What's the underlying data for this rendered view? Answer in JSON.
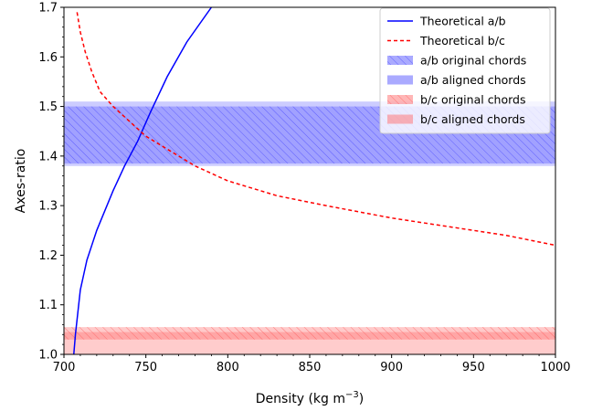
{
  "chart_data": {
    "type": "line",
    "xlabel": "Density (kg m",
    "xlabel_sup": "−3",
    "xlabel_close": ")",
    "ylabel": "Axes-ratio",
    "xlim": [
      700,
      1000
    ],
    "ylim": [
      1.0,
      1.7
    ],
    "xticks": [
      700,
      750,
      800,
      850,
      900,
      950,
      1000
    ],
    "yticks": [
      1.0,
      1.1,
      1.2,
      1.3,
      1.4,
      1.5,
      1.6,
      1.7
    ],
    "xtick_labels": [
      "700",
      "750",
      "800",
      "850",
      "900",
      "950",
      "1000"
    ],
    "ytick_labels": [
      "1.0",
      "1.1",
      "1.2",
      "1.3",
      "1.4",
      "1.5",
      "1.6",
      "1.7"
    ],
    "grid": false,
    "legend_position": "top-right",
    "series": [
      {
        "name": "Theoretical a/b",
        "style": "solid",
        "color": "#0000ff",
        "x": [
          706,
          706.5,
          707,
          708,
          709,
          710,
          712,
          714,
          717,
          720,
          725,
          730,
          737,
          745,
          753,
          763,
          775,
          790
        ],
        "y": [
          1.0,
          1.02,
          1.04,
          1.07,
          1.1,
          1.13,
          1.16,
          1.19,
          1.22,
          1.25,
          1.29,
          1.33,
          1.38,
          1.43,
          1.49,
          1.56,
          1.63,
          1.7
        ]
      },
      {
        "name": "Theoretical b/c",
        "style": "dashed",
        "color": "#ff0000",
        "x": [
          708,
          710,
          713,
          717,
          722,
          730,
          740,
          750,
          765,
          780,
          800,
          830,
          860,
          900,
          940,
          970,
          1000
        ],
        "y": [
          1.69,
          1.65,
          1.61,
          1.57,
          1.53,
          1.5,
          1.47,
          1.44,
          1.41,
          1.38,
          1.35,
          1.32,
          1.3,
          1.275,
          1.255,
          1.24,
          1.22
        ]
      }
    ],
    "bands": [
      {
        "name": "a/b original chords",
        "ymin": 1.385,
        "ymax": 1.5,
        "color": "#0000ff",
        "hatch": true
      },
      {
        "name": "a/b aligned chords",
        "ymin": 1.38,
        "ymax": 1.51,
        "color": "#0000ff",
        "hatch": false
      },
      {
        "name": "b/c original chords",
        "ymin": 1.03,
        "ymax": 1.055,
        "color": "#ff0000",
        "hatch": true
      },
      {
        "name": "b/c aligned chords",
        "ymin": 1.0,
        "ymax": 1.045,
        "color": "#ff0000",
        "hatch": false
      }
    ]
  }
}
